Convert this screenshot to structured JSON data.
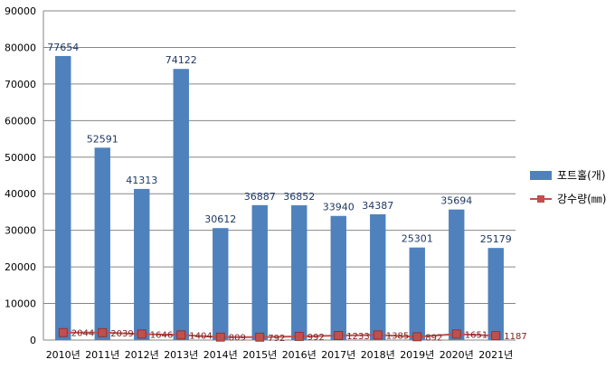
{
  "chart_data": {
    "type": "bar",
    "categories": [
      "2010년",
      "2011년",
      "2012년",
      "2013년",
      "2014년",
      "2015년",
      "2016년",
      "2017년",
      "2018년",
      "2019년",
      "2020년",
      "2021년"
    ],
    "series": [
      {
        "name": "포트홀(개)",
        "type": "bar",
        "color": "#4f81bd",
        "values": [
          77654,
          52591,
          41313,
          74122,
          30612,
          36887,
          36852,
          33940,
          34387,
          25301,
          35694,
          25179
        ]
      },
      {
        "name": "강수량(㎜)",
        "type": "line",
        "color": "#c0504d",
        "values": [
          2044,
          2039,
          1646,
          1404,
          809,
          792,
          992,
          1233,
          1385,
          892,
          1651,
          1187
        ]
      }
    ],
    "ylim": [
      0,
      90000
    ],
    "yticks": [
      0,
      10000,
      20000,
      30000,
      40000,
      50000,
      60000,
      70000,
      80000,
      90000
    ],
    "grid": true,
    "legend": "right"
  }
}
